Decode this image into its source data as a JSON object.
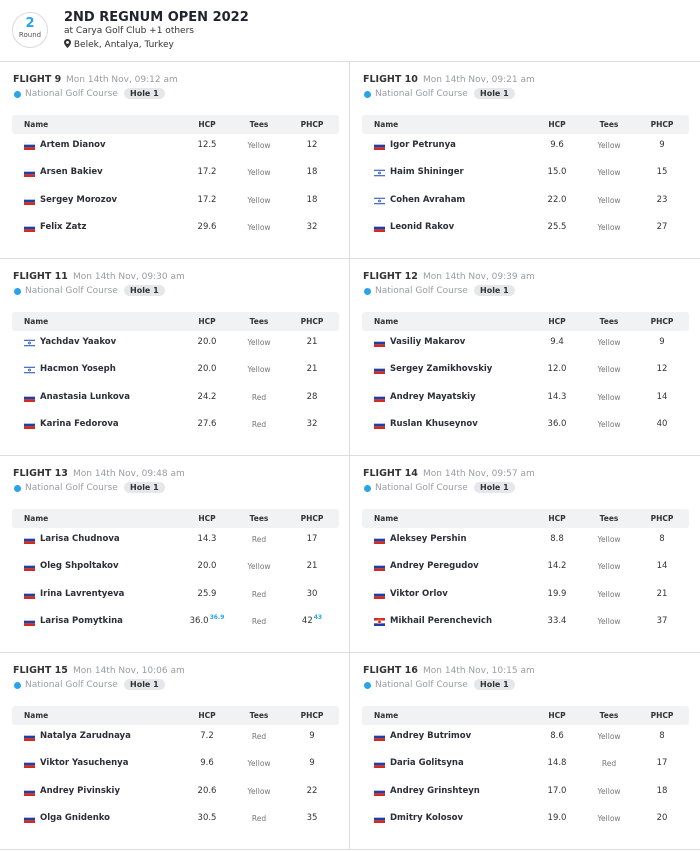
{
  "header": {
    "round": "2",
    "round_label": "Round",
    "title": "2ND REGNUM OPEN 2022",
    "subtitle": "at Carya Golf Club +1 others",
    "location": "Belek, Antalya, Turkey"
  },
  "columns": [
    "Name",
    "HCP",
    "Tees",
    "PHCP"
  ],
  "flights": [
    {
      "flight": "FLIGHT 9",
      "time": "Mon 14th Nov, 09:12 am",
      "course": "National Golf Course",
      "hole": "Hole 1",
      "players": [
        {
          "name": "Artem Dianov",
          "hcp": "12.5",
          "tees": "Yellow",
          "phcp": "12"
        },
        {
          "name": "Arsen Bakiev",
          "hcp": "17.2",
          "tees": "Yellow",
          "phcp": "18"
        },
        {
          "name": "Sergey Morozov",
          "hcp": "17.2",
          "tees": "Yellow",
          "phcp": "18"
        },
        {
          "name": "Felix Zatz",
          "hcp": "29.6",
          "tees": "Yellow",
          "phcp": "32"
        }
      ]
    },
    {
      "flight": "FLIGHT 10",
      "time": "Mon 14th Nov, 09:21 am",
      "course": "National Golf Course",
      "hole": "Hole 1",
      "players": [
        {
          "name": "Igor Petrunya",
          "hcp": "9.6",
          "tees": "Yellow",
          "phcp": "9"
        },
        {
          "name": "Haim Shininger",
          "hcp": "15.0",
          "tees": "Yellow",
          "phcp": "15"
        },
        {
          "name": "Cohen Avraham",
          "hcp": "22.0",
          "tees": "Yellow",
          "phcp": "23"
        },
        {
          "name": "Leonid Rakov",
          "hcp": "25.5",
          "tees": "Yellow",
          "phcp": "27"
        }
      ]
    },
    {
      "flight": "FLIGHT 11",
      "time": "Mon 14th Nov, 09:30 am",
      "course": "National Golf Course",
      "hole": "Hole 1",
      "players": [
        {
          "name": "Yachdav Yaakov",
          "hcp": "20.0",
          "tees": "Yellow",
          "phcp": "21"
        },
        {
          "name": "Hacmon Yoseph",
          "hcp": "20.0",
          "tees": "Yellow",
          "phcp": "21"
        },
        {
          "name": "Anastasia Lunkova",
          "hcp": "24.2",
          "tees": "Red",
          "phcp": "28"
        },
        {
          "name": "Karina Fedorova",
          "hcp": "27.6",
          "tees": "Red",
          "phcp": "32"
        }
      ]
    },
    {
      "flight": "FLIGHT 12",
      "time": "Mon 14th Nov, 09:39 am",
      "course": "National Golf Course",
      "hole": "Hole 1",
      "players": [
        {
          "name": "Vasiliy Makarov",
          "hcp": "9.4",
          "tees": "Yellow",
          "phcp": "9"
        },
        {
          "name": "Sergey Zamikhovskiy",
          "hcp": "12.0",
          "tees": "Yellow",
          "phcp": "12"
        },
        {
          "name": "Andrey Mayatskiy",
          "hcp": "14.3",
          "tees": "Yellow",
          "phcp": "14"
        },
        {
          "name": "Ruslan Khuseynov",
          "hcp": "36.0",
          "tees": "Yellow",
          "phcp": "40"
        }
      ]
    },
    {
      "flight": "FLIGHT 13",
      "time": "Mon 14th Nov, 09:48 am",
      "course": "National Golf Course",
      "hole": "Hole 1",
      "players": [
        {
          "name": "Larisa Chudnova",
          "hcp": "14.3",
          "tees": "Red",
          "phcp": "17"
        },
        {
          "name": "Oleg Shpoltakov",
          "hcp": "20.0",
          "tees": "Yellow",
          "phcp": "21"
        },
        {
          "name": "Irina Lavrentyeva",
          "hcp": "25.9",
          "tees": "Red",
          "phcp": "30"
        },
        {
          "name": "Larisa Pomytkina",
          "hcp": "36.0",
          "hcp_sup": "36.9",
          "tees": "Red",
          "phcp": "42",
          "phcp_sup": "43"
        }
      ]
    },
    {
      "flight": "FLIGHT 14",
      "time": "Mon 14th Nov, 09:57 am",
      "course": "National Golf Course",
      "hole": "Hole 1",
      "players": [
        {
          "name": "Aleksey Pershin",
          "hcp": "8.8",
          "tees": "Yellow",
          "phcp": "8"
        },
        {
          "name": "Andrey Peregudov",
          "hcp": "14.2",
          "tees": "Yellow",
          "phcp": "14"
        },
        {
          "name": "Viktor Orlov",
          "hcp": "19.9",
          "tees": "Yellow",
          "phcp": "21"
        },
        {
          "name": "Mikhail Perenchevich",
          "hcp": "33.4",
          "tees": "Yellow",
          "phcp": "37"
        }
      ]
    },
    {
      "flight": "FLIGHT 15",
      "time": "Mon 14th Nov, 10:06 am",
      "course": "National Golf Course",
      "hole": "Hole 1",
      "players": [
        {
          "name": "Natalya Zarudnaya",
          "hcp": "7.2",
          "tees": "Red",
          "phcp": "9"
        },
        {
          "name": "Viktor Yasuchenya",
          "hcp": "9.6",
          "tees": "Yellow",
          "phcp": "9"
        },
        {
          "name": "Andrey Pivinskiy",
          "hcp": "20.6",
          "tees": "Yellow",
          "phcp": "22"
        },
        {
          "name": "Olga Gnidenko",
          "hcp": "30.5",
          "tees": "Red",
          "phcp": "35"
        }
      ]
    },
    {
      "flight": "FLIGHT 16",
      "time": "Mon 14th Nov, 10:15 am",
      "course": "National Golf Course",
      "hole": "Hole 1",
      "players": [
        {
          "name": "Andrey Butrimov",
          "hcp": "8.6",
          "tees": "Yellow",
          "phcp": "8"
        },
        {
          "name": "Daria Golitsyna",
          "hcp": "14.8",
          "tees": "Red",
          "phcp": "17"
        },
        {
          "name": "Andrey Grinshteyn",
          "hcp": "17.0",
          "tees": "Yellow",
          "phcp": "18"
        },
        {
          "name": "Dmitry Kolosov",
          "hcp": "19.0",
          "tees": "Yellow",
          "phcp": "20"
        }
      ]
    }
  ]
}
